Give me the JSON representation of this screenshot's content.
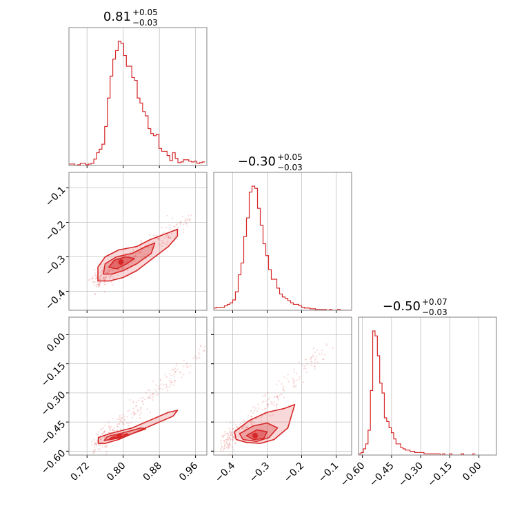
{
  "chart_data": {
    "type": "corner",
    "color": "#d62728",
    "grid": true,
    "parameters": [
      {
        "index": 0,
        "range": [
          0.68,
          0.985
        ],
        "ticks": [
          0.72,
          0.8,
          0.88,
          0.96
        ],
        "tick_labels": [
          "0.72",
          "0.80",
          "0.88",
          "0.96"
        ],
        "title": {
          "value": "0.81",
          "upper": "+0.05",
          "lower": "−0.03"
        },
        "hist": {
          "x": [
            0.684,
            0.69,
            0.696,
            0.702,
            0.708,
            0.714,
            0.72,
            0.726,
            0.732,
            0.738,
            0.744,
            0.75,
            0.756,
            0.762,
            0.768,
            0.774,
            0.78,
            0.786,
            0.792,
            0.798,
            0.804,
            0.81,
            0.816,
            0.822,
            0.828,
            0.834,
            0.84,
            0.846,
            0.852,
            0.858,
            0.864,
            0.87,
            0.876,
            0.882,
            0.888,
            0.894,
            0.9,
            0.906,
            0.912,
            0.918,
            0.924,
            0.93,
            0.936,
            0.942,
            0.948,
            0.954,
            0.96,
            0.966,
            0.972,
            0.978
          ],
          "counts": [
            2,
            2,
            0,
            1,
            3,
            3,
            1,
            2,
            3,
            9,
            18,
            23,
            30,
            55,
            95,
            126,
            150,
            162,
            175,
            172,
            155,
            140,
            140,
            124,
            120,
            95,
            88,
            76,
            70,
            52,
            45,
            42,
            44,
            24,
            20,
            20,
            14,
            7,
            18,
            10,
            4,
            5,
            8,
            8,
            6,
            5,
            6,
            3,
            4,
            5
          ]
        }
      },
      {
        "index": 1,
        "range": [
          -0.455,
          -0.055
        ],
        "ticks": [
          -0.4,
          -0.3,
          -0.2,
          -0.1
        ],
        "tick_labels": [
          "−0.4",
          "−0.3",
          "−0.2",
          "−0.1"
        ],
        "title": {
          "value": "−0.30",
          "upper": "+0.05",
          "lower": "−0.03"
        },
        "hist": {
          "x": [
            -0.452,
            -0.444,
            -0.436,
            -0.428,
            -0.42,
            -0.412,
            -0.404,
            -0.396,
            -0.388,
            -0.38,
            -0.372,
            -0.364,
            -0.356,
            -0.348,
            -0.34,
            -0.332,
            -0.324,
            -0.316,
            -0.308,
            -0.3,
            -0.292,
            -0.284,
            -0.276,
            -0.268,
            -0.26,
            -0.252,
            -0.244,
            -0.236,
            -0.228,
            -0.22,
            -0.212,
            -0.204,
            -0.196,
            -0.188,
            -0.18,
            -0.172,
            -0.164,
            -0.156,
            -0.148,
            -0.14,
            -0.132,
            -0.124,
            -0.116,
            -0.108,
            -0.1,
            -0.092,
            -0.084,
            -0.076,
            -0.068,
            -0.06
          ],
          "counts": [
            3,
            4,
            4,
            4,
            6,
            8,
            10,
            14,
            25,
            48,
            64,
            100,
            125,
            160,
            168,
            165,
            138,
            115,
            90,
            74,
            55,
            42,
            42,
            30,
            22,
            18,
            16,
            13,
            10,
            8,
            8,
            6,
            4,
            3,
            3,
            2,
            2,
            1,
            1,
            1,
            1,
            0,
            1,
            0,
            0,
            1,
            0,
            0,
            0,
            0
          ]
        }
      },
      {
        "index": 2,
        "range": [
          -0.62,
          0.09
        ],
        "ticks": [
          -0.6,
          -0.45,
          -0.3,
          -0.15,
          0.0
        ],
        "tick_labels": [
          "−0.60",
          "−0.45",
          "−0.30",
          "−0.15",
          "0.00"
        ],
        "title": {
          "value": "−0.50",
          "upper": "+0.07",
          "lower": "−0.03"
        },
        "hist": {
          "x": [
            -0.613,
            -0.601,
            -0.589,
            -0.577,
            -0.565,
            -0.553,
            -0.541,
            -0.529,
            -0.517,
            -0.505,
            -0.493,
            -0.481,
            -0.469,
            -0.457,
            -0.445,
            -0.433,
            -0.421,
            -0.409,
            -0.397,
            -0.385,
            -0.373,
            -0.361,
            -0.349,
            -0.337,
            -0.325,
            -0.313,
            -0.301,
            -0.289,
            -0.277,
            -0.265,
            -0.253,
            -0.241,
            -0.229,
            -0.217,
            -0.205,
            -0.193,
            -0.181,
            -0.169,
            -0.157,
            -0.145,
            -0.133,
            -0.121,
            -0.109,
            -0.097,
            -0.085,
            -0.073,
            -0.061,
            -0.049,
            -0.037,
            -0.025
          ],
          "counts": [
            1,
            2,
            5,
            9,
            20,
            52,
            100,
            96,
            80,
            58,
            50,
            30,
            27,
            22,
            18,
            13,
            9,
            9,
            6,
            5,
            4,
            4,
            3,
            3,
            2,
            2,
            2,
            2,
            1,
            1,
            1,
            1,
            1,
            1,
            1,
            0,
            1,
            0,
            0,
            1,
            0,
            0,
            0,
            0,
            1,
            0,
            0,
            0,
            0,
            1
          ]
        }
      }
    ],
    "pairs": [
      {
        "x_param": 0,
        "y_param": 1,
        "ridge": [
          [
            0.745,
            -0.37
          ],
          [
            0.96,
            -0.18
          ]
        ],
        "contours": [
          [
            [
              0.744,
              -0.37
            ],
            [
              0.744,
              -0.33
            ],
            [
              0.76,
              -0.3
            ],
            [
              0.79,
              -0.28
            ],
            [
              0.83,
              -0.27
            ],
            [
              0.86,
              -0.25
            ],
            [
              0.9,
              -0.23
            ],
            [
              0.92,
              -0.22
            ],
            [
              0.92,
              -0.24
            ],
            [
              0.9,
              -0.27
            ],
            [
              0.86,
              -0.31
            ],
            [
              0.83,
              -0.34
            ],
            [
              0.8,
              -0.36
            ],
            [
              0.77,
              -0.37
            ]
          ],
          [
            [
              0.756,
              -0.35
            ],
            [
              0.76,
              -0.32
            ],
            [
              0.785,
              -0.3
            ],
            [
              0.82,
              -0.29
            ],
            [
              0.85,
              -0.27
            ],
            [
              0.87,
              -0.26
            ],
            [
              0.862,
              -0.29
            ],
            [
              0.83,
              -0.32
            ],
            [
              0.8,
              -0.34
            ],
            [
              0.775,
              -0.35
            ]
          ],
          [
            [
              0.768,
              -0.33
            ],
            [
              0.78,
              -0.31
            ],
            [
              0.805,
              -0.3
            ],
            [
              0.825,
              -0.305
            ],
            [
              0.808,
              -0.32
            ],
            [
              0.785,
              -0.335
            ]
          ]
        ],
        "peak": [
          0.795,
          -0.315
        ]
      },
      {
        "x_param": 0,
        "y_param": 2,
        "ridge": [
          [
            0.745,
            -0.56
          ],
          [
            0.985,
            -0.06
          ]
        ],
        "contours": [
          [
            [
              0.745,
              -0.56
            ],
            [
              0.745,
              -0.53
            ],
            [
              0.77,
              -0.51
            ],
            [
              0.82,
              -0.48
            ],
            [
              0.86,
              -0.44
            ],
            [
              0.9,
              -0.4
            ],
            [
              0.92,
              -0.39
            ],
            [
              0.91,
              -0.42
            ],
            [
              0.87,
              -0.46
            ],
            [
              0.83,
              -0.5
            ],
            [
              0.79,
              -0.54
            ],
            [
              0.76,
              -0.56
            ]
          ],
          [
            [
              0.758,
              -0.545
            ],
            [
              0.765,
              -0.525
            ],
            [
              0.8,
              -0.505
            ],
            [
              0.84,
              -0.48
            ],
            [
              0.85,
              -0.485
            ],
            [
              0.82,
              -0.51
            ],
            [
              0.785,
              -0.535
            ]
          ],
          [
            [
              0.77,
              -0.535
            ],
            [
              0.785,
              -0.52
            ],
            [
              0.81,
              -0.51
            ],
            [
              0.8,
              -0.525
            ]
          ]
        ],
        "peak": [
          0.792,
          -0.525
        ]
      },
      {
        "x_param": 1,
        "y_param": 2,
        "ridge": [
          [
            -0.42,
            -0.56
          ],
          [
            -0.12,
            -0.06
          ]
        ],
        "contours": [
          [
            [
              -0.395,
              -0.5
            ],
            [
              -0.39,
              -0.54
            ],
            [
              -0.36,
              -0.555
            ],
            [
              -0.32,
              -0.56
            ],
            [
              -0.28,
              -0.54
            ],
            [
              -0.24,
              -0.48
            ],
            [
              -0.22,
              -0.36
            ],
            [
              -0.25,
              -0.38
            ],
            [
              -0.3,
              -0.4
            ],
            [
              -0.35,
              -0.44
            ]
          ],
          [
            [
              -0.38,
              -0.51
            ],
            [
              -0.37,
              -0.54
            ],
            [
              -0.33,
              -0.55
            ],
            [
              -0.295,
              -0.53
            ],
            [
              -0.27,
              -0.48
            ],
            [
              -0.3,
              -0.455
            ],
            [
              -0.34,
              -0.47
            ]
          ],
          [
            [
              -0.36,
              -0.52
            ],
            [
              -0.34,
              -0.54
            ],
            [
              -0.31,
              -0.535
            ],
            [
              -0.3,
              -0.5
            ],
            [
              -0.33,
              -0.49
            ]
          ]
        ],
        "peak": [
          -0.335,
          -0.52
        ]
      }
    ]
  }
}
